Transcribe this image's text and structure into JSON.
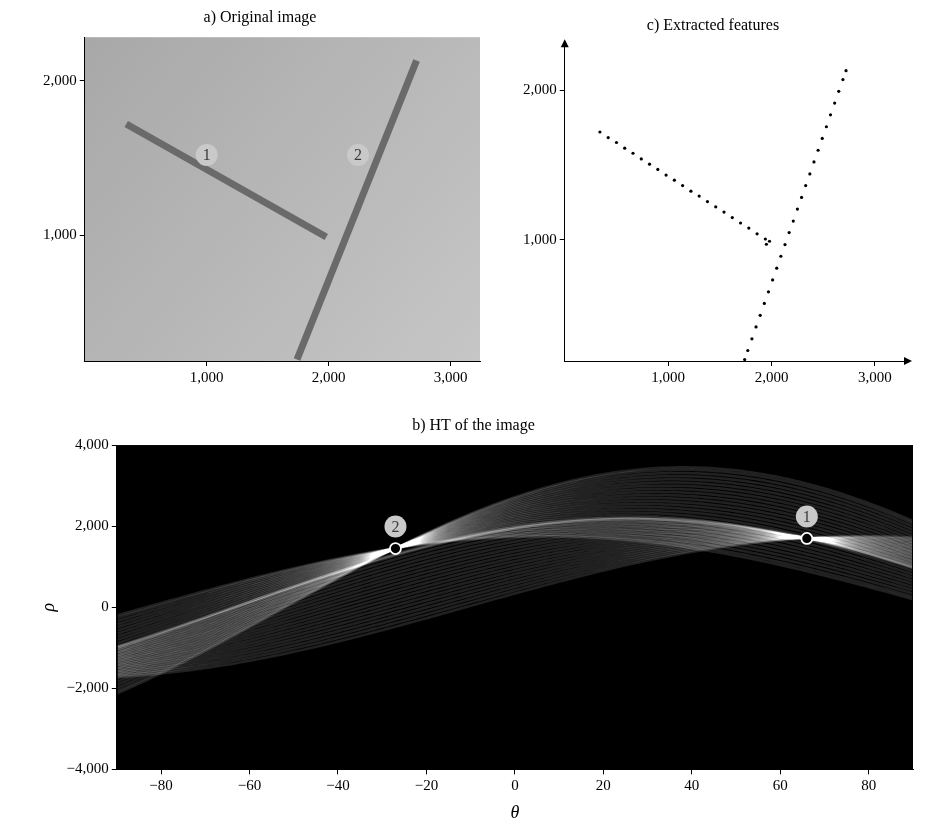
{
  "chart_data": [
    {
      "type": "line",
      "title": "a) Original image",
      "xlim": [
        0,
        3240
      ],
      "ylim": [
        190,
        2280
      ],
      "xticks": [
        {
          "value": 1000,
          "label": "1,000"
        },
        {
          "value": 2000,
          "label": "2,000"
        },
        {
          "value": 3000,
          "label": "3,000"
        }
      ],
      "yticks": [
        {
          "value": 1000,
          "label": "1,000"
        },
        {
          "value": 2000,
          "label": "2,000"
        }
      ],
      "grid": false,
      "series": [
        {
          "color": "#6a6a6a",
          "x": [
            340,
            1980
          ],
          "values": [
            1720,
            990
          ]
        },
        {
          "color": "#6a6a6a",
          "x": [
            1740,
            2720
          ],
          "values": [
            200,
            2130
          ]
        }
      ],
      "annotations": [
        {
          "text": "1",
          "x": 1000,
          "y": 1520
        },
        {
          "text": "2",
          "x": 2240,
          "y": 1520
        }
      ]
    },
    {
      "type": "scatter",
      "title": "c) Extracted features",
      "xlim": [
        0,
        3300
      ],
      "ylim": [
        190,
        2300
      ],
      "xticks": [
        {
          "value": 1000,
          "label": "1,000"
        },
        {
          "value": 2000,
          "label": "2,000"
        },
        {
          "value": 3000,
          "label": "3,000"
        }
      ],
      "yticks": [
        {
          "value": 1000,
          "label": "1,000"
        },
        {
          "value": 2000,
          "label": "2,000"
        }
      ],
      "grid": false,
      "series": [
        {
          "color": "#000000",
          "marker": "point",
          "x": [
            340,
            420,
            500,
            580,
            660,
            740,
            820,
            900,
            980,
            1060,
            1140,
            1220,
            1300,
            1380,
            1460,
            1540,
            1620,
            1700,
            1780,
            1860,
            1940,
            1980,
            1950
          ],
          "values": [
            1720,
            1683,
            1650,
            1612,
            1578,
            1540,
            1505,
            1470,
            1432,
            1398,
            1362,
            1325,
            1292,
            1255,
            1220,
            1185,
            1148,
            1112,
            1078,
            1040,
            1005,
            990,
            970
          ]
        },
        {
          "color": "#000000",
          "marker": "point",
          "x": [
            1740,
            1770,
            1810,
            1850,
            1890,
            1930,
            1970,
            2010,
            2050,
            2090,
            2130,
            2170,
            2210,
            2250,
            2290,
            2330,
            2370,
            2410,
            2450,
            2490,
            2530,
            2570,
            2610,
            2650,
            2690,
            2720
          ],
          "values": [
            200,
            260,
            338,
            418,
            495,
            575,
            652,
            732,
            810,
            890,
            968,
            1048,
            1125,
            1205,
            1283,
            1362,
            1440,
            1520,
            1598,
            1677,
            1755,
            1835,
            1913,
            1992,
            2070,
            2130
          ]
        }
      ]
    },
    {
      "type": "heatmap",
      "title": "b) HT of the image",
      "x_label": "θ",
      "y_label": "ρ",
      "xlim": [
        -90,
        90
      ],
      "ylim": [
        -4000,
        4000
      ],
      "xticks": [
        {
          "value": -80,
          "label": "−80"
        },
        {
          "value": -60,
          "label": "−60"
        },
        {
          "value": -40,
          "label": "−40"
        },
        {
          "value": -20,
          "label": "−20"
        },
        0,
        20,
        40,
        60,
        80
      ],
      "yticks": [
        {
          "value": -4000,
          "label": "−4,000"
        },
        {
          "value": -2000,
          "label": "−2,000"
        },
        0,
        {
          "value": 2000,
          "label": "2,000"
        },
        {
          "value": 4000,
          "label": "4,000"
        }
      ],
      "grid": false,
      "marker": "dot",
      "annotations": [
        {
          "text": "1",
          "x": 66,
          "y": 1700
        },
        {
          "text": "2",
          "x": -27,
          "y": 1450
        }
      ]
    }
  ]
}
